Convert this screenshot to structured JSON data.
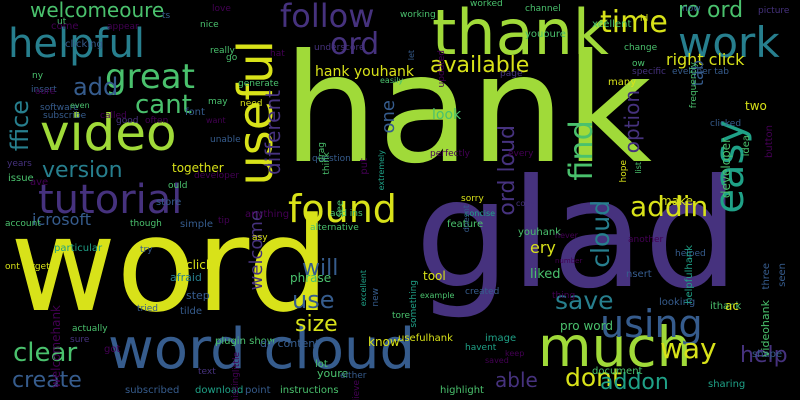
{
  "palette": {
    "yellow": "#d8e219",
    "lime": "#a0da39",
    "green": "#4ac16d",
    "teal": "#1fa187",
    "cyan": "#277f8e",
    "blue": "#365c8d",
    "indigo": "#46327e",
    "purple": "#440154"
  },
  "words": [
    {
      "text": "hank",
      "color": "lime"
    },
    {
      "text": "word",
      "color": "yellow"
    },
    {
      "text": "glad",
      "color": "indigo"
    },
    {
      "text": "thank",
      "color": "lime"
    },
    {
      "text": "word cloud",
      "color": "blue"
    },
    {
      "text": "much",
      "color": "lime"
    },
    {
      "text": "useful",
      "color": "yellow"
    },
    {
      "text": "video",
      "color": "lime"
    },
    {
      "text": "helpful",
      "color": "cyan"
    },
    {
      "text": "tutorial",
      "color": "indigo"
    },
    {
      "text": "found",
      "color": "yellow"
    },
    {
      "text": "using",
      "color": "blue"
    },
    {
      "text": "work",
      "color": "cyan"
    },
    {
      "text": "easy",
      "color": "teal"
    },
    {
      "text": "great",
      "color": "green"
    },
    {
      "text": "follow",
      "color": "indigo"
    },
    {
      "text": "ord",
      "color": "indigo"
    },
    {
      "text": "time",
      "color": "yellow"
    },
    {
      "text": "find",
      "color": "green"
    },
    {
      "text": "cant",
      "color": "green"
    },
    {
      "text": "addin",
      "color": "yellow"
    },
    {
      "text": "clear",
      "color": "green"
    },
    {
      "text": "way",
      "color": "yellow"
    },
    {
      "text": "dont",
      "color": "yellow"
    },
    {
      "text": "save",
      "color": "cyan"
    },
    {
      "text": "create",
      "color": "blue"
    },
    {
      "text": "add",
      "color": "blue"
    },
    {
      "text": "available",
      "color": "yellow"
    },
    {
      "text": "version",
      "color": "cyan"
    },
    {
      "text": "welcomeoure",
      "color": "green"
    },
    {
      "text": "ro ord",
      "color": "green"
    },
    {
      "text": "option",
      "color": "indigo"
    },
    {
      "text": "cloud",
      "color": "cyan"
    },
    {
      "text": "able",
      "color": "indigo"
    },
    {
      "text": "addon",
      "color": "teal"
    },
    {
      "text": "help",
      "color": "indigo"
    },
    {
      "text": "use",
      "color": "blue"
    },
    {
      "text": "size",
      "color": "yellow"
    },
    {
      "text": "will",
      "color": "blue"
    },
    {
      "text": "different",
      "color": "indigo"
    },
    {
      "text": "welcome",
      "color": "indigo"
    },
    {
      "text": "right click",
      "color": "yellow"
    },
    {
      "text": "ord loud",
      "color": "indigo"
    },
    {
      "text": "ffice",
      "color": "cyan"
    },
    {
      "text": "icrosoft",
      "color": "blue"
    },
    {
      "text": "ery",
      "color": "yellow"
    },
    {
      "text": "hank youhank",
      "color": "yellow"
    },
    {
      "text": "one",
      "color": "blue"
    },
    {
      "text": "tab",
      "color": "blue"
    },
    {
      "text": "make",
      "color": "yellow"
    },
    {
      "text": "look",
      "color": "green"
    },
    {
      "text": "liked",
      "color": "green"
    },
    {
      "text": "pro word",
      "color": "green"
    },
    {
      "text": "developer",
      "color": "green"
    },
    {
      "text": "two",
      "color": "yellow"
    },
    {
      "text": "welcomehank",
      "color": "purple"
    },
    {
      "text": "together",
      "color": "yellow"
    },
    {
      "text": "youhank",
      "color": "green"
    },
    {
      "text": "tool",
      "color": "yellow"
    },
    {
      "text": "phrase",
      "color": "green"
    },
    {
      "text": "know",
      "color": "yellow"
    },
    {
      "text": "usefulhank",
      "color": "yellow"
    },
    {
      "text": "click",
      "color": "yellow"
    },
    {
      "text": "afraid",
      "color": "cyan"
    },
    {
      "text": "step",
      "color": "blue"
    },
    {
      "text": "tilde",
      "color": "blue"
    },
    {
      "text": "plugin show",
      "color": "green"
    },
    {
      "text": "dd content",
      "color": "blue"
    },
    {
      "text": "lot",
      "color": "green"
    },
    {
      "text": "youre",
      "color": "green"
    },
    {
      "text": "instructions",
      "color": "green"
    },
    {
      "text": "download",
      "color": "teal"
    },
    {
      "text": "subscribed",
      "color": "blue"
    },
    {
      "text": "point",
      "color": "blue"
    },
    {
      "text": "text",
      "color": "indigo"
    },
    {
      "text": "little",
      "color": "purple"
    },
    {
      "text": "missing",
      "color": "purple"
    },
    {
      "text": "either",
      "color": "blue"
    },
    {
      "text": "believe",
      "color": "purple"
    },
    {
      "text": "highlight",
      "color": "green"
    },
    {
      "text": "keep",
      "color": "purple"
    },
    {
      "text": "saved",
      "color": "purple"
    },
    {
      "text": "sharing",
      "color": "teal"
    },
    {
      "text": "shape",
      "color": "blue"
    },
    {
      "text": "image",
      "color": "teal"
    },
    {
      "text": "havent",
      "color": "teal"
    },
    {
      "text": "document",
      "color": "green"
    },
    {
      "text": "looking",
      "color": "blue"
    },
    {
      "text": "ithank",
      "color": "green"
    },
    {
      "text": "videohank",
      "color": "green"
    },
    {
      "text": "ac",
      "color": "yellow"
    },
    {
      "text": "nsert",
      "color": "blue"
    },
    {
      "text": "another",
      "color": "purple"
    },
    {
      "text": "helped",
      "color": "blue"
    },
    {
      "text": "helpfulhank",
      "color": "teal"
    },
    {
      "text": "three",
      "color": "blue"
    },
    {
      "text": "seen",
      "color": "blue"
    },
    {
      "text": "created",
      "color": "blue"
    },
    {
      "text": "tore",
      "color": "green"
    },
    {
      "text": "example",
      "color": "green"
    },
    {
      "text": "something",
      "color": "teal"
    },
    {
      "text": "new",
      "color": "blue"
    },
    {
      "text": "excellent",
      "color": "teal"
    },
    {
      "text": "never",
      "color": "purple"
    },
    {
      "text": "number",
      "color": "purple"
    },
    {
      "text": "thing",
      "color": "purple"
    },
    {
      "text": "copy",
      "color": "indigo"
    },
    {
      "text": "concise",
      "color": "teal"
    },
    {
      "text": "feature",
      "color": "green"
    },
    {
      "text": "sorry",
      "color": "yellow"
    },
    {
      "text": "doesnt",
      "color": "blue"
    },
    {
      "text": "anything",
      "color": "purple"
    },
    {
      "text": "add ins",
      "color": "green"
    },
    {
      "text": "see",
      "color": "green"
    },
    {
      "text": "alternative",
      "color": "green"
    },
    {
      "text": "question",
      "color": "blue"
    },
    {
      "text": "drag",
      "color": "green"
    },
    {
      "text": "think",
      "color": "green"
    },
    {
      "text": "put",
      "color": "purple"
    },
    {
      "text": "extremely",
      "color": "teal"
    },
    {
      "text": "perfectly",
      "color": "purple"
    },
    {
      "text": "every",
      "color": "purple"
    },
    {
      "text": "hope",
      "color": "yellow"
    },
    {
      "text": "list",
      "color": "green"
    },
    {
      "text": "clicked",
      "color": "blue"
    },
    {
      "text": "button",
      "color": "purple"
    },
    {
      "text": "idea",
      "color": "green"
    },
    {
      "text": "eveloper tab",
      "color": "blue"
    },
    {
      "text": "specific",
      "color": "indigo"
    },
    {
      "text": "many",
      "color": "yellow"
    },
    {
      "text": "page",
      "color": "indigo"
    },
    {
      "text": "change",
      "color": "green"
    },
    {
      "text": "xcellent",
      "color": "green"
    },
    {
      "text": "ow",
      "color": "green"
    },
    {
      "text": "frequently",
      "color": "green"
    },
    {
      "text": "now",
      "color": "blue"
    },
    {
      "text": "id",
      "color": "yellow"
    },
    {
      "text": "channel",
      "color": "green"
    },
    {
      "text": "worked",
      "color": "green"
    },
    {
      "text": "yououre",
      "color": "green"
    },
    {
      "text": "working",
      "color": "green"
    },
    {
      "text": "let",
      "color": "blue"
    },
    {
      "text": "picture",
      "color": "indigo"
    },
    {
      "text": "easily",
      "color": "green"
    },
    {
      "text": "updated",
      "color": "purple"
    },
    {
      "text": "underscore",
      "color": "indigo"
    },
    {
      "text": "love",
      "color": "purple"
    },
    {
      "text": "really",
      "color": "green"
    },
    {
      "text": "go",
      "color": "green"
    },
    {
      "text": "generate",
      "color": "green"
    },
    {
      "text": "hat",
      "color": "purple"
    },
    {
      "text": "ts",
      "color": "blue"
    },
    {
      "text": "appear",
      "color": "purple"
    },
    {
      "text": "nice",
      "color": "green"
    },
    {
      "text": "ut",
      "color": "green"
    },
    {
      "text": "come",
      "color": "purple"
    },
    {
      "text": "clicking",
      "color": "blue"
    },
    {
      "text": "ny",
      "color": "green"
    },
    {
      "text": "insert",
      "color": "blue"
    },
    {
      "text": "oure",
      "color": "purple"
    },
    {
      "text": "software",
      "color": "blue"
    },
    {
      "text": "even",
      "color": "green"
    },
    {
      "text": "subscribe",
      "color": "blue"
    },
    {
      "text": "called",
      "color": "purple"
    },
    {
      "text": "good",
      "color": "indigo"
    },
    {
      "text": "often",
      "color": "purple"
    },
    {
      "text": "font",
      "color": "blue"
    },
    {
      "text": "may",
      "color": "green"
    },
    {
      "text": "need",
      "color": "yellow"
    },
    {
      "text": "want",
      "color": "purple"
    },
    {
      "text": "unable",
      "color": "blue"
    },
    {
      "text": "years",
      "color": "indigo"
    },
    {
      "text": "issue",
      "color": "green"
    },
    {
      "text": "ave",
      "color": "purple"
    },
    {
      "text": "developer",
      "color": "purple"
    },
    {
      "text": "ould",
      "color": "green"
    },
    {
      "text": "store",
      "color": "blue"
    },
    {
      "text": "though",
      "color": "green"
    },
    {
      "text": "simple",
      "color": "blue"
    },
    {
      "text": "tip",
      "color": "purple"
    },
    {
      "text": "asy",
      "color": "yellow"
    },
    {
      "text": "account",
      "color": "green"
    },
    {
      "text": "try",
      "color": "blue"
    },
    {
      "text": "particular",
      "color": "teal"
    },
    {
      "text": "ont forget",
      "color": "yellow"
    },
    {
      "text": "tried",
      "color": "blue"
    },
    {
      "text": "actually",
      "color": "green"
    },
    {
      "text": "sure",
      "color": "indigo"
    },
    {
      "text": "got",
      "color": "purple"
    }
  ]
}
